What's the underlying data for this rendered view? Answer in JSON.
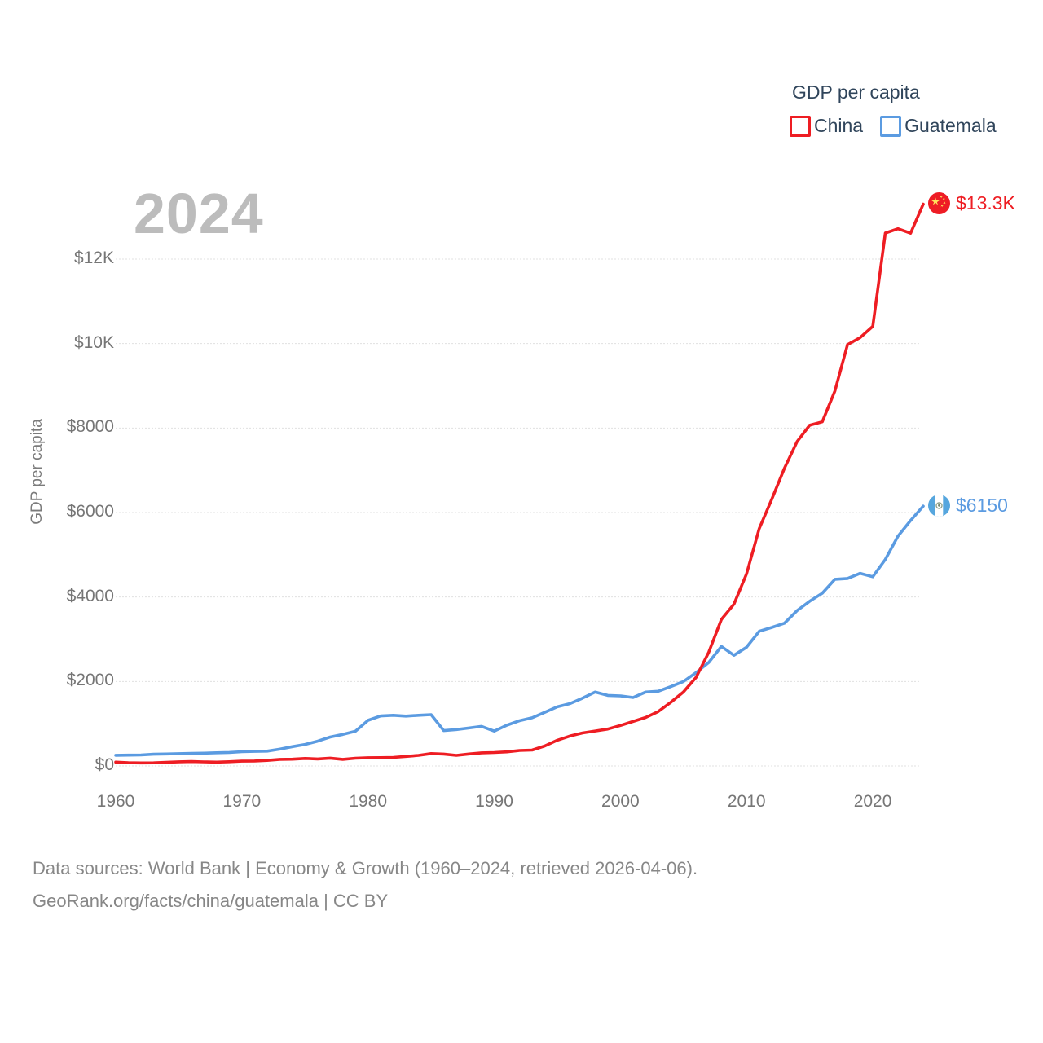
{
  "watermark": {
    "year": "2024"
  },
  "legend": {
    "title": "GDP per capita",
    "items": [
      {
        "label": "China",
        "color": "#ee1d23"
      },
      {
        "label": "Guatemala",
        "color": "#5b9be1"
      }
    ]
  },
  "chart_data": {
    "type": "line",
    "title": "GDP per capita",
    "ylabel": "GDP per capita",
    "xlabel": "",
    "grid": "horizontal",
    "legend_position": "top-right",
    "x": {
      "start": 1960,
      "end": 2024,
      "step": 1
    },
    "x_ticks": [
      1960,
      1970,
      1980,
      1990,
      2000,
      2010,
      2020
    ],
    "y_ticks": [
      {
        "value": 0,
        "label": "$0"
      },
      {
        "value": 2000,
        "label": "$2000"
      },
      {
        "value": 4000,
        "label": "$4000"
      },
      {
        "value": 6000,
        "label": "$6000"
      },
      {
        "value": 8000,
        "label": "$8000"
      },
      {
        "value": 10000,
        "label": "$10K"
      },
      {
        "value": 12000,
        "label": "$12K"
      }
    ],
    "ylim": [
      0,
      13700
    ],
    "series": [
      {
        "name": "China",
        "color": "#ee1d23",
        "end_label": "$13.3K",
        "end_flag": "china-flag",
        "values": [
          90,
          76,
          71,
          74,
          85,
          98,
          104,
          97,
          91,
          100,
          113,
          118,
          131,
          157,
          160,
          178,
          165,
          185,
          156,
          184,
          195,
          197,
          203,
          225,
          250,
          294,
          281,
          251,
          283,
          310,
          318,
          333,
          366,
          377,
          473,
          610,
          709,
          781,
          828,
          873,
          959,
          1053,
          1148,
          1288,
          1508,
          1753,
          2099,
          2693,
          3468,
          3832,
          4550,
          5618,
          6316,
          7050,
          7678,
          8066,
          8147,
          8879,
          9976,
          10143,
          10408,
          12617,
          12720,
          12614,
          13303
        ]
      },
      {
        "name": "Guatemala",
        "color": "#5b9be1",
        "end_label": "$6150",
        "end_flag": "guatemala-flag",
        "values": [
          252,
          256,
          260,
          277,
          284,
          291,
          297,
          302,
          313,
          321,
          337,
          345,
          351,
          398,
          458,
          509,
          586,
          685,
          747,
          822,
          1080,
          1185,
          1200,
          1180,
          1200,
          1215,
          838,
          862,
          900,
          938,
          825,
          965,
          1070,
          1140,
          1270,
          1400,
          1475,
          1605,
          1750,
          1670,
          1660,
          1620,
          1750,
          1770,
          1880,
          2000,
          2210,
          2450,
          2830,
          2620,
          2810,
          3190,
          3280,
          3380,
          3680,
          3900,
          4090,
          4420,
          4440,
          4560,
          4480,
          4890,
          5440,
          5810,
          6150
        ]
      }
    ]
  },
  "footer": {
    "line1": "Data sources: World Bank | Economy & Growth (1960–2024, retrieved 2026-04-06).",
    "line2": "GeoRank.org/facts/china/guatemala | CC BY"
  }
}
